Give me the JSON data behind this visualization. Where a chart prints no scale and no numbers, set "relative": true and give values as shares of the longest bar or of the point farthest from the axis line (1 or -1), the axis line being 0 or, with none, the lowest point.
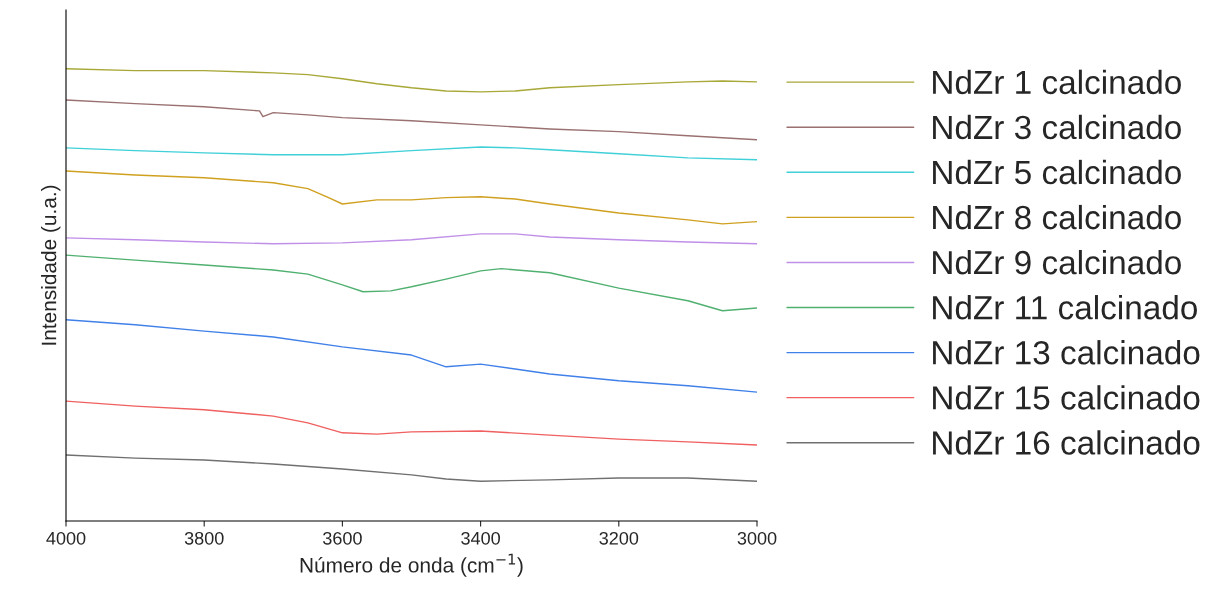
{
  "chart_data": {
    "type": "line",
    "relative": true,
    "xlabel": "Número de onda (cm$^{−1}$)",
    "ylabel": "Intensidade (u.a.)",
    "xlim": [
      4000,
      3000
    ],
    "xticks": [
      4000,
      3800,
      3600,
      3400,
      3200,
      3000
    ],
    "grid": false,
    "legend": "right",
    "marker": "none",
    "line_style": "solid",
    "series": [
      {
        "name": "NdZr 1 calcinado",
        "color": "#a8a838",
        "x": [
          4000,
          3900,
          3800,
          3700,
          3650,
          3600,
          3550,
          3500,
          3450,
          3400,
          3350,
          3300,
          3200,
          3100,
          3050,
          3000
        ],
        "values": [
          1.0,
          0.996,
          0.996,
          0.991,
          0.987,
          0.978,
          0.967,
          0.958,
          0.951,
          0.949,
          0.951,
          0.958,
          0.965,
          0.971,
          0.973,
          0.971
        ]
      },
      {
        "name": "NdZr 3 calcinado",
        "color": "#9a7070",
        "x": [
          4000,
          3900,
          3800,
          3720,
          3715,
          3700,
          3650,
          3600,
          3500,
          3400,
          3300,
          3200,
          3100,
          3000
        ],
        "values": [
          0.931,
          0.923,
          0.916,
          0.907,
          0.894,
          0.903,
          0.898,
          0.892,
          0.885,
          0.876,
          0.867,
          0.861,
          0.852,
          0.843
        ]
      },
      {
        "name": "NdZr 5 calcinado",
        "color": "#40d0d8",
        "x": [
          4000,
          3900,
          3800,
          3700,
          3600,
          3500,
          3400,
          3350,
          3300,
          3200,
          3100,
          3000
        ],
        "values": [
          0.825,
          0.819,
          0.814,
          0.81,
          0.81,
          0.819,
          0.827,
          0.825,
          0.821,
          0.812,
          0.803,
          0.799
        ]
      },
      {
        "name": "NdZr 8 calcinado",
        "color": "#d0a020",
        "x": [
          4000,
          3900,
          3800,
          3700,
          3650,
          3620,
          3600,
          3550,
          3500,
          3450,
          3400,
          3350,
          3300,
          3200,
          3100,
          3050,
          3000
        ],
        "values": [
          0.774,
          0.765,
          0.759,
          0.748,
          0.735,
          0.715,
          0.701,
          0.71,
          0.71,
          0.715,
          0.717,
          0.712,
          0.701,
          0.681,
          0.666,
          0.657,
          0.662
        ]
      },
      {
        "name": "NdZr 9 calcinado",
        "color": "#c090e8",
        "x": [
          4000,
          3900,
          3800,
          3700,
          3600,
          3500,
          3400,
          3350,
          3300,
          3200,
          3100,
          3000
        ],
        "values": [
          0.626,
          0.622,
          0.617,
          0.613,
          0.615,
          0.622,
          0.635,
          0.635,
          0.628,
          0.622,
          0.617,
          0.613
        ]
      },
      {
        "name": "NdZr 11 calcinado",
        "color": "#50b070",
        "x": [
          4000,
          3900,
          3800,
          3700,
          3650,
          3600,
          3570,
          3530,
          3500,
          3450,
          3400,
          3370,
          3300,
          3200,
          3100,
          3050,
          3000
        ],
        "values": [
          0.588,
          0.577,
          0.566,
          0.555,
          0.546,
          0.522,
          0.507,
          0.509,
          0.518,
          0.535,
          0.553,
          0.558,
          0.549,
          0.515,
          0.487,
          0.465,
          0.471
        ]
      },
      {
        "name": "NdZr 13 calcinado",
        "color": "#4080e8",
        "x": [
          4000,
          3900,
          3800,
          3700,
          3600,
          3500,
          3450,
          3400,
          3350,
          3300,
          3200,
          3100,
          3000
        ],
        "values": [
          0.445,
          0.434,
          0.42,
          0.407,
          0.385,
          0.367,
          0.341,
          0.347,
          0.336,
          0.325,
          0.31,
          0.299,
          0.285
        ]
      },
      {
        "name": "NdZr 15 calcinado",
        "color": "#f06060",
        "x": [
          4000,
          3900,
          3800,
          3700,
          3650,
          3600,
          3550,
          3500,
          3400,
          3300,
          3200,
          3100,
          3000
        ],
        "values": [
          0.265,
          0.254,
          0.246,
          0.232,
          0.217,
          0.195,
          0.192,
          0.197,
          0.199,
          0.19,
          0.181,
          0.175,
          0.168
        ]
      },
      {
        "name": "NdZr 16 calcinado",
        "color": "#707070",
        "x": [
          4000,
          3900,
          3800,
          3700,
          3600,
          3500,
          3450,
          3400,
          3300,
          3200,
          3100,
          3000
        ],
        "values": [
          0.146,
          0.139,
          0.135,
          0.126,
          0.115,
          0.102,
          0.093,
          0.088,
          0.091,
          0.095,
          0.095,
          0.088
        ]
      }
    ]
  }
}
